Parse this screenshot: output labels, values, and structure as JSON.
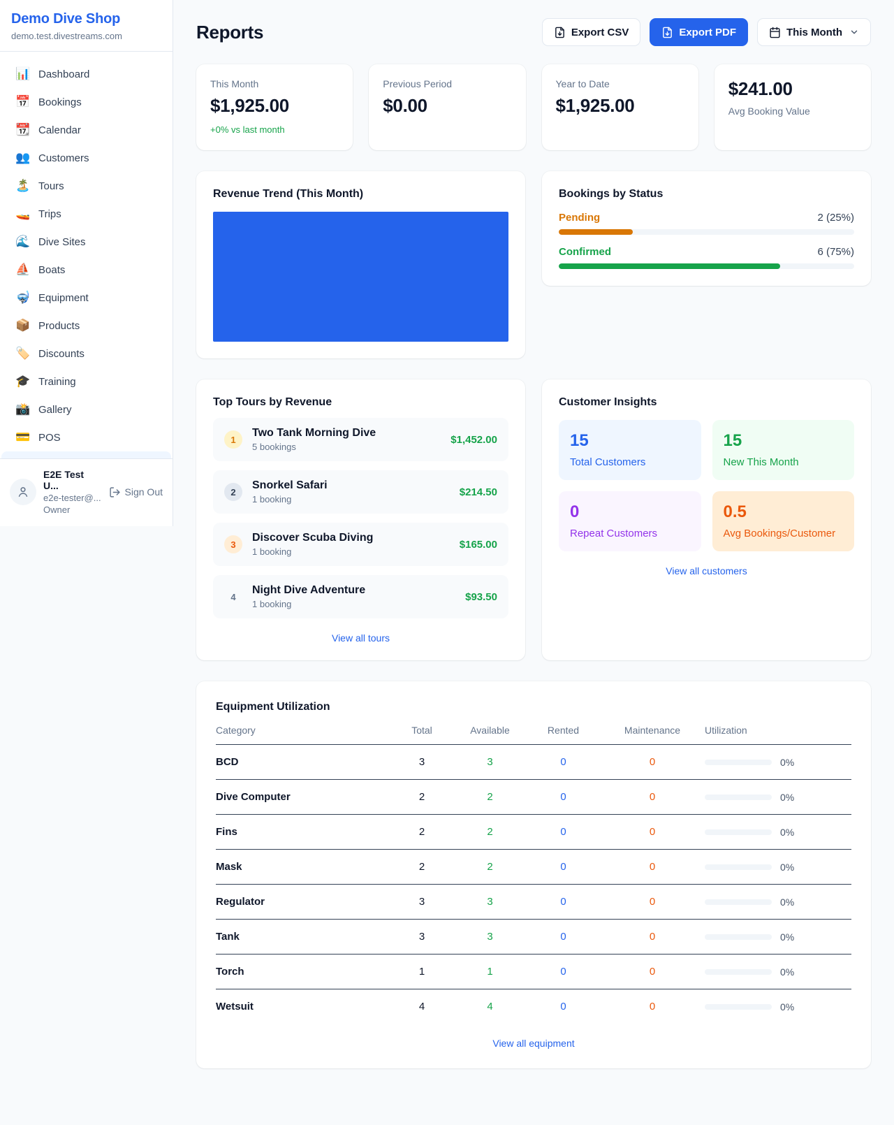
{
  "colors": {
    "accent": "#2563eb",
    "green": "#16a34a",
    "amber": "#d97706",
    "orange": "#ea580c",
    "purple": "#9333ea"
  },
  "sidebar": {
    "title": "Demo Dive Shop",
    "subdomain": "demo.test.divestreams.com",
    "items": [
      {
        "label": "Dashboard",
        "icon": "dashboard-chart-icon",
        "glyph": "📊"
      },
      {
        "label": "Bookings",
        "icon": "bookings-calendar-icon",
        "glyph": "📅"
      },
      {
        "label": "Calendar",
        "icon": "calendar-icon",
        "glyph": "📆"
      },
      {
        "label": "Customers",
        "icon": "customers-icon",
        "glyph": "👥"
      },
      {
        "label": "Tours",
        "icon": "tours-island-icon",
        "glyph": "🏝️"
      },
      {
        "label": "Trips",
        "icon": "trips-speedboat-icon",
        "glyph": "🚤"
      },
      {
        "label": "Dive Sites",
        "icon": "dive-sites-wave-icon",
        "glyph": "🌊"
      },
      {
        "label": "Boats",
        "icon": "boats-sailboat-icon",
        "glyph": "⛵"
      },
      {
        "label": "Equipment",
        "icon": "equipment-mask-icon",
        "glyph": "🤿"
      },
      {
        "label": "Products",
        "icon": "products-box-icon",
        "glyph": "📦"
      },
      {
        "label": "Discounts",
        "icon": "discounts-tag-icon",
        "glyph": "🏷️"
      },
      {
        "label": "Training",
        "icon": "training-cap-icon",
        "glyph": "🎓"
      },
      {
        "label": "Gallery",
        "icon": "gallery-camera-icon",
        "glyph": "📸"
      },
      {
        "label": "POS",
        "icon": "pos-card-icon",
        "glyph": "💳"
      }
    ],
    "user": {
      "name": "E2E Test U...",
      "email": "e2e-tester@...",
      "role": "Owner",
      "signout_label": "Sign Out"
    }
  },
  "header": {
    "title": "Reports",
    "export_csv_label": "Export CSV",
    "export_pdf_label": "Export PDF",
    "period_label": "This Month"
  },
  "stats": [
    {
      "label": "This Month",
      "value": "$1,925.00",
      "delta": "+0% vs last month"
    },
    {
      "label": "Previous Period",
      "value": "$0.00"
    },
    {
      "label": "Year to Date",
      "value": "$1,925.00"
    },
    {
      "label": "Avg Booking Value",
      "value": "$241.00",
      "value_first": true
    }
  ],
  "revenue_trend": {
    "title": "Revenue Trend (This Month)",
    "bar_color": "#2563eb"
  },
  "bookings_by_status": {
    "title": "Bookings by Status",
    "rows": [
      {
        "label": "Pending",
        "value": "2 (25%)",
        "pct": 25,
        "color": "#d97706"
      },
      {
        "label": "Confirmed",
        "value": "6 (75%)",
        "pct": 75,
        "color": "#16a34a"
      }
    ]
  },
  "top_tours": {
    "title": "Top Tours by Revenue",
    "rows": [
      {
        "rank": "1",
        "name": "Two Tank Morning Dive",
        "bookings": "5 bookings",
        "amount": "$1,452.00",
        "badge_bg": "#fef3c7",
        "badge_color": "#d97706"
      },
      {
        "rank": "2",
        "name": "Snorkel Safari",
        "bookings": "1 booking",
        "amount": "$214.50",
        "badge_bg": "#e2e8f0",
        "badge_color": "#334155"
      },
      {
        "rank": "3",
        "name": "Discover Scuba Diving",
        "bookings": "1 booking",
        "amount": "$165.00",
        "badge_bg": "#ffedd5",
        "badge_color": "#ea580c"
      },
      {
        "rank": "4",
        "name": "Night Dive Adventure",
        "bookings": "1 booking",
        "amount": "$93.50",
        "badge_bg": "transparent",
        "badge_color": "#64748b"
      }
    ],
    "link_label": "View all tours"
  },
  "customer_insights": {
    "title": "Customer Insights",
    "tiles": [
      {
        "number": "15",
        "label": "Total Customers",
        "bg": "#eff6ff",
        "color": "#2563eb"
      },
      {
        "number": "15",
        "label": "New This Month",
        "bg": "#f0fdf4",
        "color": "#16a34a"
      },
      {
        "number": "0",
        "label": "Repeat Customers",
        "bg": "#faf5ff",
        "color": "#9333ea"
      },
      {
        "number": "0.5",
        "label": "Avg Bookings/Customer",
        "bg": "#ffedd5",
        "color": "#ea580c"
      }
    ],
    "link_label": "View all customers"
  },
  "equipment": {
    "title": "Equipment Utilization",
    "columns": [
      "Category",
      "Total",
      "Available",
      "Rented",
      "Maintenance",
      "Utilization"
    ],
    "rows": [
      {
        "category": "BCD",
        "total": "3",
        "available": "3",
        "rented": "0",
        "maintenance": "0",
        "utilization": "0%",
        "utilization_pct": 0
      },
      {
        "category": "Dive Computer",
        "total": "2",
        "available": "2",
        "rented": "0",
        "maintenance": "0",
        "utilization": "0%",
        "utilization_pct": 0
      },
      {
        "category": "Fins",
        "total": "2",
        "available": "2",
        "rented": "0",
        "maintenance": "0",
        "utilization": "0%",
        "utilization_pct": 0
      },
      {
        "category": "Mask",
        "total": "2",
        "available": "2",
        "rented": "0",
        "maintenance": "0",
        "utilization": "0%",
        "utilization_pct": 0
      },
      {
        "category": "Regulator",
        "total": "3",
        "available": "3",
        "rented": "0",
        "maintenance": "0",
        "utilization": "0%",
        "utilization_pct": 0
      },
      {
        "category": "Tank",
        "total": "3",
        "available": "3",
        "rented": "0",
        "maintenance": "0",
        "utilization": "0%",
        "utilization_pct": 0
      },
      {
        "category": "Torch",
        "total": "1",
        "available": "1",
        "rented": "0",
        "maintenance": "0",
        "utilization": "0%",
        "utilization_pct": 0
      },
      {
        "category": "Wetsuit",
        "total": "4",
        "available": "4",
        "rented": "0",
        "maintenance": "0",
        "utilization": "0%",
        "utilization_pct": 0
      }
    ],
    "link_label": "View all equipment"
  }
}
